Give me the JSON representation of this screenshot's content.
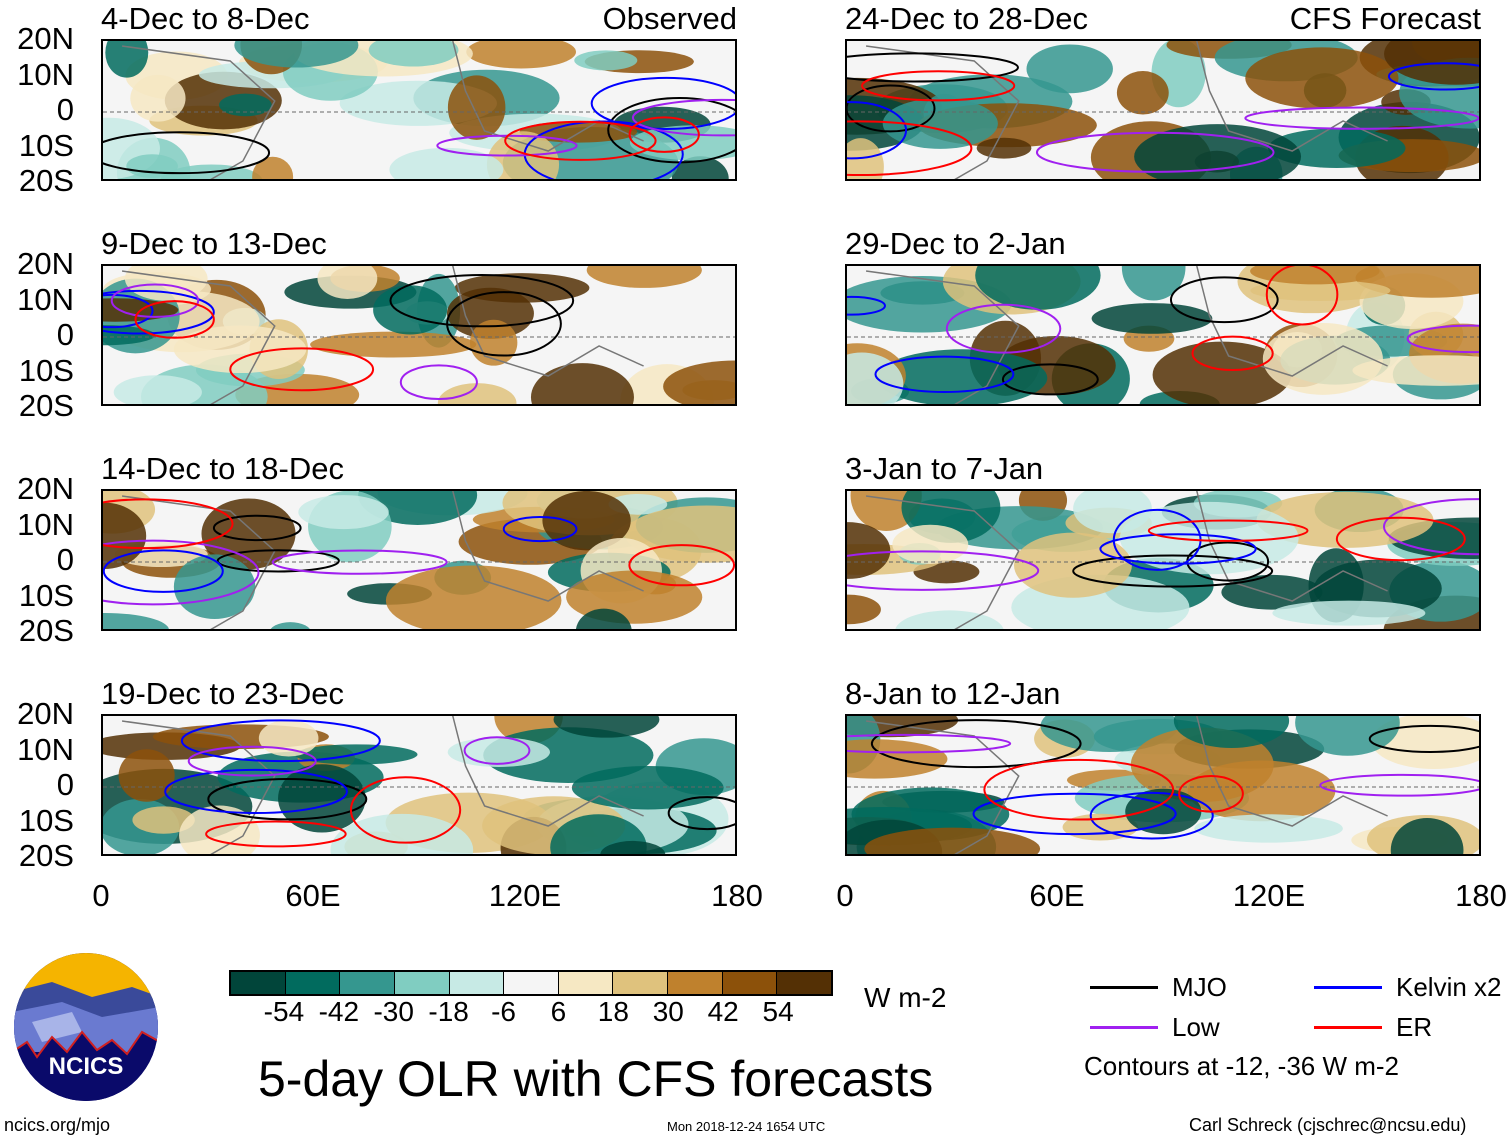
{
  "chart_data": {
    "type": "heatmap",
    "title": "5-day OLR with CFS forecasts",
    "units": "W m-2",
    "lat_ticks": [
      "20N",
      "10N",
      "0",
      "10S",
      "20S"
    ],
    "lon_ticks": [
      "0",
      "60E",
      "120E",
      "180"
    ],
    "xlim": [
      0,
      180
    ],
    "ylim": [
      -20,
      20
    ],
    "panels": [
      {
        "title": "4-Dec to 8-Dec",
        "tag": "Observed"
      },
      {
        "title": "9-Dec to 13-Dec"
      },
      {
        "title": "14-Dec to 18-Dec"
      },
      {
        "title": "19-Dec to 23-Dec"
      },
      {
        "title": "24-Dec to 28-Dec",
        "tag": "CFS Forecast"
      },
      {
        "title": "29-Dec to 2-Jan"
      },
      {
        "title": "3-Jan to 7-Jan"
      },
      {
        "title": "8-Jan to 12-Jan"
      }
    ],
    "colorbar": {
      "ticks": [
        "-54",
        "-42",
        "-30",
        "-18",
        "-6",
        "6",
        "18",
        "30",
        "42",
        "54"
      ],
      "colors": [
        "#01453a",
        "#016b5e",
        "#35978f",
        "#80cdc1",
        "#c7eae5",
        "#f5f5f5",
        "#f6e8c3",
        "#dfc27d",
        "#bf812d",
        "#8c510a",
        "#543005"
      ]
    },
    "legend": [
      {
        "label": "MJO",
        "color": "#000000"
      },
      {
        "label": "Kelvin x2",
        "color": "#0000ff"
      },
      {
        "label": "Low",
        "color": "#a020f0"
      },
      {
        "label": "ER",
        "color": "#ff0000"
      }
    ],
    "contour_note": "Contours at -12, -36 W m-2"
  },
  "logo": {
    "text": "NCICS"
  },
  "footer": {
    "url": "ncics.org/mjo",
    "timestamp": "Mon 2018-12-24 1654 UTC",
    "author": "Carl Schreck (cjschrec@ncsu.edu)"
  }
}
